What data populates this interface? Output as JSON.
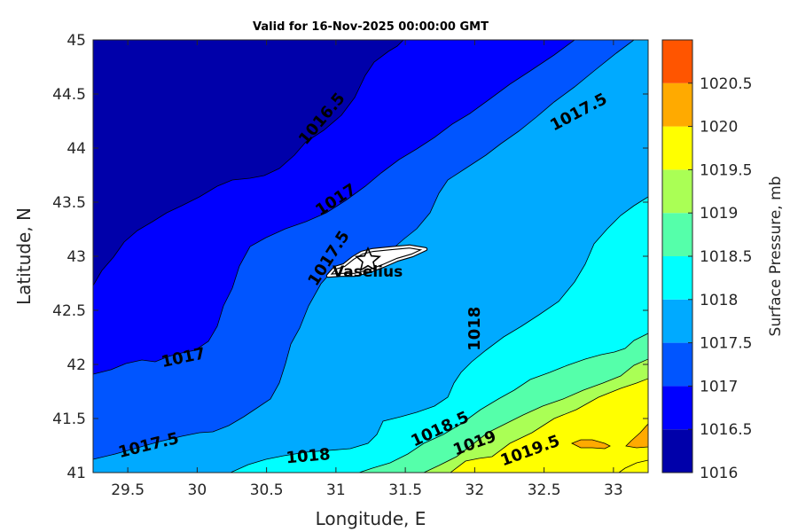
{
  "chart_data": {
    "type": "contour",
    "title": "Valid for 16-Nov-2025 00:00:00 GMT",
    "xlabel": "Longitude, E",
    "ylabel": "Latitude, N",
    "xlim": [
      29.25,
      33.25
    ],
    "ylim": [
      41,
      45
    ],
    "xticks": [
      "29.5",
      "30",
      "30.5",
      "31",
      "31.5",
      "32",
      "32.5",
      "33"
    ],
    "yticks": [
      "41",
      "41.5",
      "42",
      "42.5",
      "43",
      "43.5",
      "44",
      "44.5",
      "45"
    ],
    "colorbar": {
      "label": "Surface Pressure, mb",
      "ticks": [
        "1016",
        "1016.5",
        "1017",
        "1017.5",
        "1018",
        "1018.5",
        "1019",
        "1019.5",
        "1020",
        "1020.5"
      ],
      "levels": [
        {
          "from": 1016.0,
          "to": 1016.5,
          "color": "#0000aa"
        },
        {
          "from": 1016.5,
          "to": 1017.0,
          "color": "#0000ff"
        },
        {
          "from": 1017.0,
          "to": 1017.5,
          "color": "#0055ff"
        },
        {
          "from": 1017.5,
          "to": 1018.0,
          "color": "#00aaff"
        },
        {
          "from": 1018.0,
          "to": 1018.5,
          "color": "#00ffff"
        },
        {
          "from": 1018.5,
          "to": 1019.0,
          "color": "#55ffaa"
        },
        {
          "from": 1019.0,
          "to": 1019.5,
          "color": "#aaff55"
        },
        {
          "from": 1019.5,
          "to": 1020.0,
          "color": "#ffff00"
        },
        {
          "from": 1020.0,
          "to": 1020.5,
          "color": "#ffaa00"
        },
        {
          "from": 1020.5,
          "to": 1021.0,
          "color": "#ff5500"
        }
      ]
    },
    "contour_labels": [
      {
        "text": "1016.5",
        "lon": 30.9,
        "lat": 44.27,
        "angle": -50
      },
      {
        "text": "1017",
        "lon": 31.0,
        "lat": 43.52,
        "angle": -33
      },
      {
        "text": "1017.5",
        "lon": 32.75,
        "lat": 44.33,
        "angle": -28
      },
      {
        "text": "1017.5",
        "lon": 30.95,
        "lat": 42.98,
        "angle": -57
      },
      {
        "text": "1017",
        "lon": 29.9,
        "lat": 42.06,
        "angle": -12
      },
      {
        "text": "1017.5",
        "lon": 29.65,
        "lat": 41.25,
        "angle": -14
      },
      {
        "text": "1018",
        "lon": 30.8,
        "lat": 41.15,
        "angle": -5
      },
      {
        "text": "1018",
        "lon": 32.0,
        "lat": 42.33,
        "angle": -90
      },
      {
        "text": "1018.5",
        "lon": 31.75,
        "lat": 41.4,
        "angle": -25
      },
      {
        "text": "1019",
        "lon": 32.0,
        "lat": 41.27,
        "angle": -20
      },
      {
        "text": "1019.5",
        "lon": 32.4,
        "lat": 41.2,
        "angle": -20
      }
    ],
    "places": [
      {
        "name": "Vaselius",
        "lon": 31.25,
        "lat": 42.98
      }
    ],
    "grid": false,
    "legend": "colorbar-right"
  }
}
